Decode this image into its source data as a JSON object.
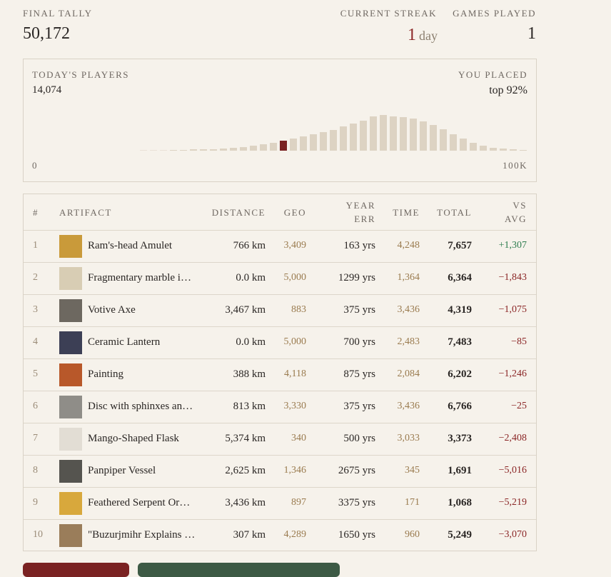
{
  "summary": {
    "final_tally_label": "FINAL TALLY",
    "final_tally": "50,172",
    "streak_label": "CURRENT STREAK",
    "streak_value": "1",
    "streak_unit": "day",
    "games_label": "GAMES PLAYED",
    "games_value": "1"
  },
  "players": {
    "label": "TODAY'S PLAYERS",
    "count": "14,074",
    "placed_label": "YOU PLACED",
    "placed_value": "top 92%",
    "axis_min": "0",
    "axis_max": "100K",
    "histogram": {
      "values": [
        0.5,
        0.5,
        0.5,
        1,
        1,
        2,
        2,
        2,
        3,
        4,
        5,
        7,
        9,
        11,
        14,
        17,
        20,
        23,
        26,
        29,
        34,
        38,
        42,
        48,
        50,
        48,
        47,
        45,
        41,
        36,
        30,
        23,
        17,
        11,
        7,
        4,
        3,
        2,
        1
      ],
      "color": "#ddd3c3",
      "highlight_index": 14,
      "highlight_color": "#7a2222"
    }
  },
  "table": {
    "headers": [
      "#",
      "ARTIFACT",
      "DISTANCE",
      "GEO",
      "YEAR ERR",
      "TIME",
      "TOTAL",
      "VS AVG"
    ],
    "rows": [
      [
        "1",
        "Ram's-head Amulet",
        "766 km",
        "3,409",
        "163 yrs",
        "4,248",
        "7,657",
        "+1,307"
      ],
      [
        "2",
        "Fragmentary marble i…",
        "0.0 km",
        "5,000",
        "1299 yrs",
        "1,364",
        "6,364",
        "−1,843"
      ],
      [
        "3",
        "Votive Axe",
        "3,467 km",
        "883",
        "375 yrs",
        "3,436",
        "4,319",
        "−1,075"
      ],
      [
        "4",
        "Ceramic Lantern",
        "0.0 km",
        "5,000",
        "700 yrs",
        "2,483",
        "7,483",
        "−85"
      ],
      [
        "5",
        "Painting",
        "388 km",
        "4,118",
        "875 yrs",
        "2,084",
        "6,202",
        "−1,246"
      ],
      [
        "6",
        "Disc with sphinxes an…",
        "813 km",
        "3,330",
        "375 yrs",
        "3,436",
        "6,766",
        "−25"
      ],
      [
        "7",
        "Mango-Shaped Flask",
        "5,374 km",
        "340",
        "500 yrs",
        "3,033",
        "3,373",
        "−2,408"
      ],
      [
        "8",
        "Panpiper Vessel",
        "2,625 km",
        "1,346",
        "2675 yrs",
        "345",
        "1,691",
        "−5,016"
      ],
      [
        "9",
        "Feathered Serpent Or…",
        "3,436 km",
        "897",
        "3375 yrs",
        "171",
        "1,068",
        "−5,219"
      ],
      [
        "10",
        "\"Buzurjmihr Explains …",
        "307 km",
        "4,289",
        "1650 yrs",
        "960",
        "5,249",
        "−3,070"
      ]
    ]
  }
}
